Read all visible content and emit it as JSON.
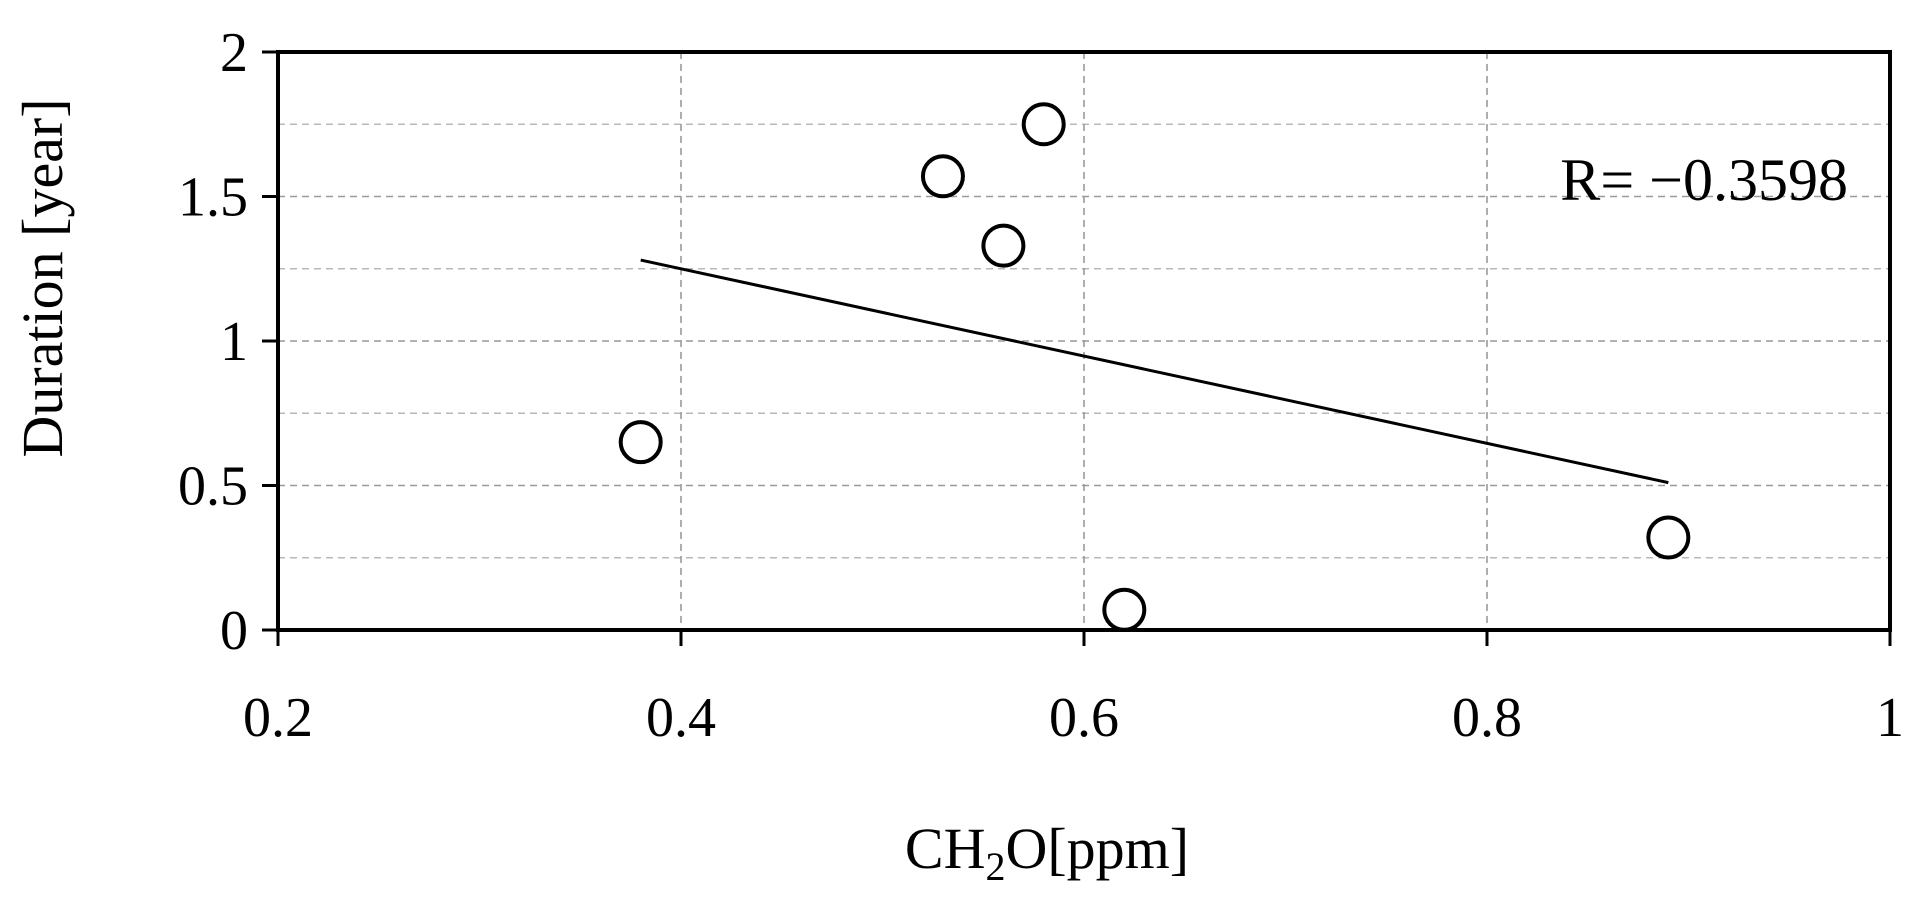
{
  "chart_data": {
    "type": "scatter",
    "xlabel": "CH2O[ppm]",
    "xlabel_parts": {
      "prefix": "CH",
      "subscript": "2",
      "suffix": "O[ppm]"
    },
    "ylabel": "Duration [year]",
    "xlim": [
      0.2,
      1.0
    ],
    "ylim": [
      0,
      2
    ],
    "x_ticks": [
      0.2,
      0.4,
      0.6,
      0.8,
      1.0
    ],
    "x_tick_labels": [
      "0.2",
      "0.4",
      "0.6",
      "0.8",
      "1"
    ],
    "y_ticks": [
      0,
      0.5,
      1,
      1.5,
      2
    ],
    "y_tick_labels": [
      "0",
      "0.5",
      "1",
      "1.5",
      "2"
    ],
    "y_minor_gridlines": [
      0.25,
      0.75,
      1.25,
      1.75
    ],
    "grid": true,
    "series": [
      {
        "marker": "open-circle",
        "x": [
          0.38,
          0.53,
          0.56,
          0.58,
          0.62,
          0.89
        ],
        "y": [
          0.65,
          1.57,
          1.33,
          1.75,
          0.07,
          0.32
        ]
      }
    ],
    "trendline": {
      "x": [
        0.38,
        0.89
      ],
      "y": [
        1.28,
        0.51
      ]
    },
    "annotation": {
      "text": "R= −0.3598"
    }
  }
}
